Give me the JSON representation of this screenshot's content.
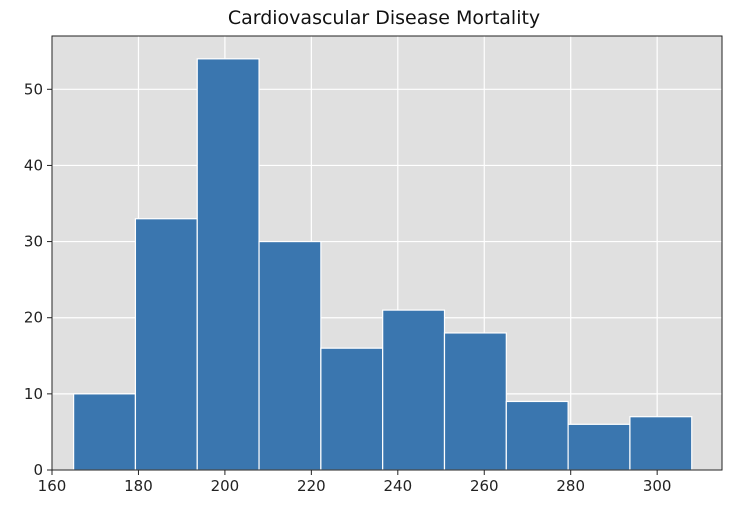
{
  "chart_data": {
    "type": "bar",
    "title": "Cardiovascular Disease Mortality",
    "xlabel": "",
    "ylabel": "",
    "bin_edges": [
      165,
      179.3,
      193.6,
      207.9,
      222.2,
      236.5,
      250.8,
      265.1,
      279.4,
      293.7,
      308
    ],
    "values": [
      10,
      33,
      54,
      30,
      16,
      21,
      18,
      9,
      6,
      7
    ],
    "xlim": [
      160,
      315
    ],
    "ylim": [
      0,
      57
    ],
    "xticks": [
      "160",
      "180",
      "200",
      "220",
      "240",
      "260",
      "280",
      "300"
    ],
    "yticks": [
      "0",
      "10",
      "20",
      "30",
      "40",
      "50"
    ],
    "grid": true,
    "bar_color": "#3a76af",
    "bar_edge_color": "#ffffff",
    "plot_background": "#e0e0e0",
    "grid_color": "#ffffff"
  }
}
